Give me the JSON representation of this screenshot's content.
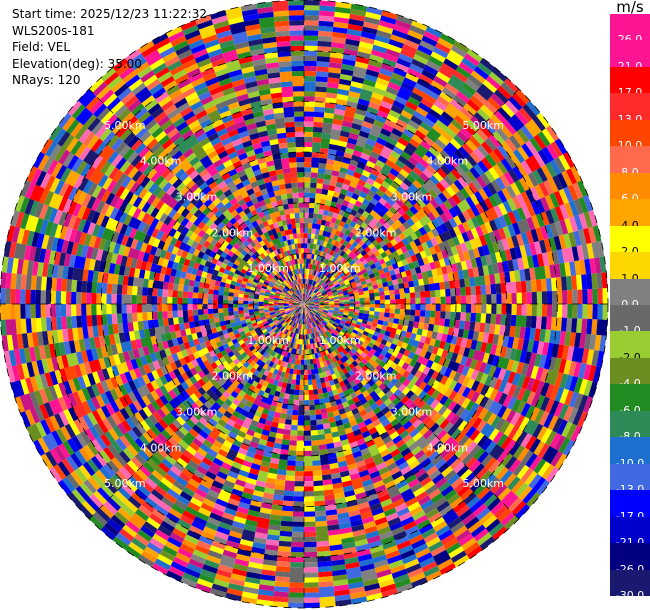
{
  "info": {
    "start_time": "Start time: 2025/12/23 11:22:32",
    "instrument": "WLS200s-181",
    "field": "Field: VEL",
    "elevation": "Elevation(deg): 35.00",
    "nrays": "NRays: 120"
  },
  "colorbar": {
    "unit": "m/s",
    "labels": [
      "26.0",
      "21.0",
      "17.0",
      "13.0",
      "10.0",
      "8.0",
      "6.0",
      "4.0",
      "2.0",
      "1.0",
      "0.0",
      "-1.0",
      "-2.0",
      "-4.0",
      "-6.0",
      "-8.0",
      "-10.0",
      "-13.0",
      "-17.0",
      "-21.0",
      "-26.0",
      "-30.0"
    ],
    "colors": [
      "#ff1493",
      "#ff1493",
      "#ff0000",
      "#ff2b2b",
      "#ff4500",
      "#ff6a4d",
      "#ff8c00",
      "#ffa500",
      "#ffff00",
      "#ffd700",
      "#808080",
      "#696969",
      "#9acd32",
      "#6b8e23",
      "#228b22",
      "#2e8b57",
      "#1e6fd0",
      "#4169e1",
      "#0000ff",
      "#0000cd",
      "#000080",
      "#191970"
    ]
  },
  "chart_data": {
    "type": "heatmap",
    "field": "VEL",
    "units": "m/s",
    "nrays": 120,
    "elevation_deg": 35.0,
    "range_km": [
      0,
      6
    ],
    "color_scale": [
      -30,
      26
    ],
    "range_ring_labels": [
      "1.00km",
      "2.00km",
      "3.00km",
      "4.00km",
      "5.00km"
    ],
    "palette": [
      "#ff1493",
      "#ff0000",
      "#ff2b2b",
      "#ff4500",
      "#ff6a4d",
      "#ff8c00",
      "#ffa500",
      "#ffff00",
      "#ffd700",
      "#808080",
      "#696969",
      "#9acd32",
      "#6b8e23",
      "#228b22",
      "#2e8b57",
      "#1e6fd0",
      "#4169e1",
      "#0000ff",
      "#0000cd",
      "#000080",
      "#191970",
      "#c71585",
      "#ff69b4"
    ]
  }
}
